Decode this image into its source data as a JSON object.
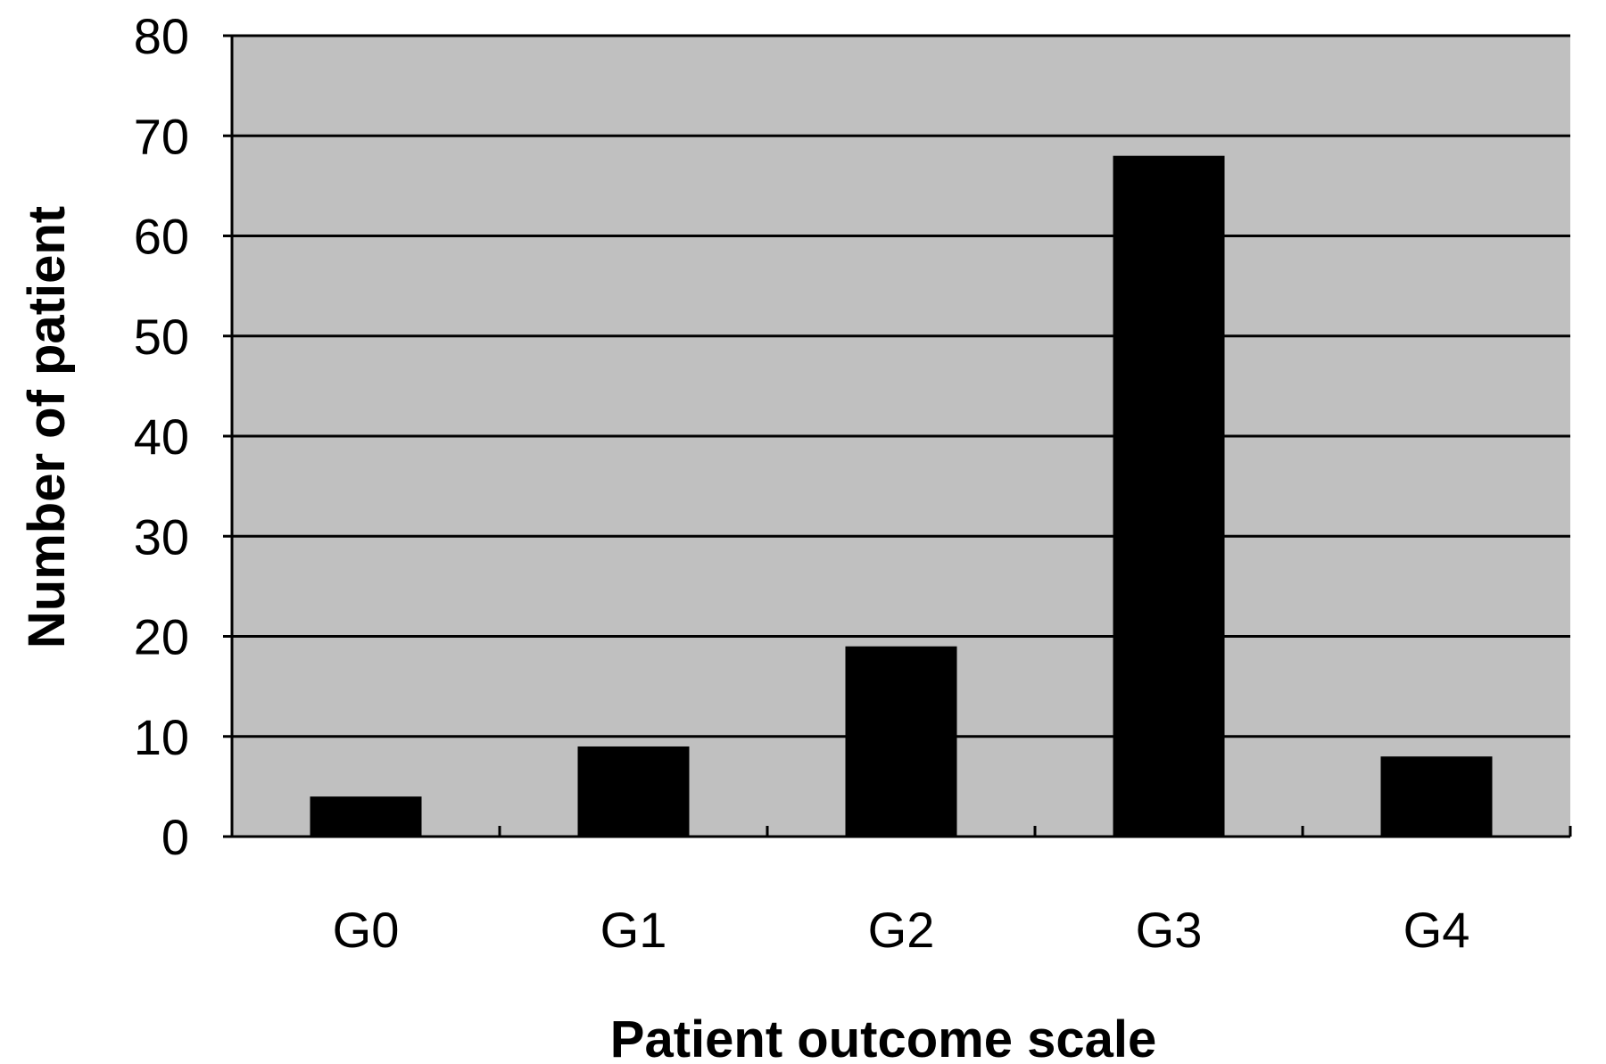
{
  "chart_data": {
    "type": "bar",
    "title": "",
    "xlabel": "Patient outcome scale",
    "ylabel": "Number of patient",
    "categories": [
      "G0",
      "G1",
      "G2",
      "G3",
      "G4"
    ],
    "values": [
      4,
      9,
      19,
      68,
      8
    ],
    "ylim": [
      0,
      80
    ],
    "yticks": [
      "0",
      "10",
      "20",
      "30",
      "40",
      "50",
      "60",
      "70",
      "80"
    ],
    "grid": true,
    "legend": "none"
  },
  "colors": {
    "plot_background": "#c0c0c0",
    "bar_fill": "#000000",
    "grid_line": "#000000",
    "page_background": "#ffffff"
  }
}
